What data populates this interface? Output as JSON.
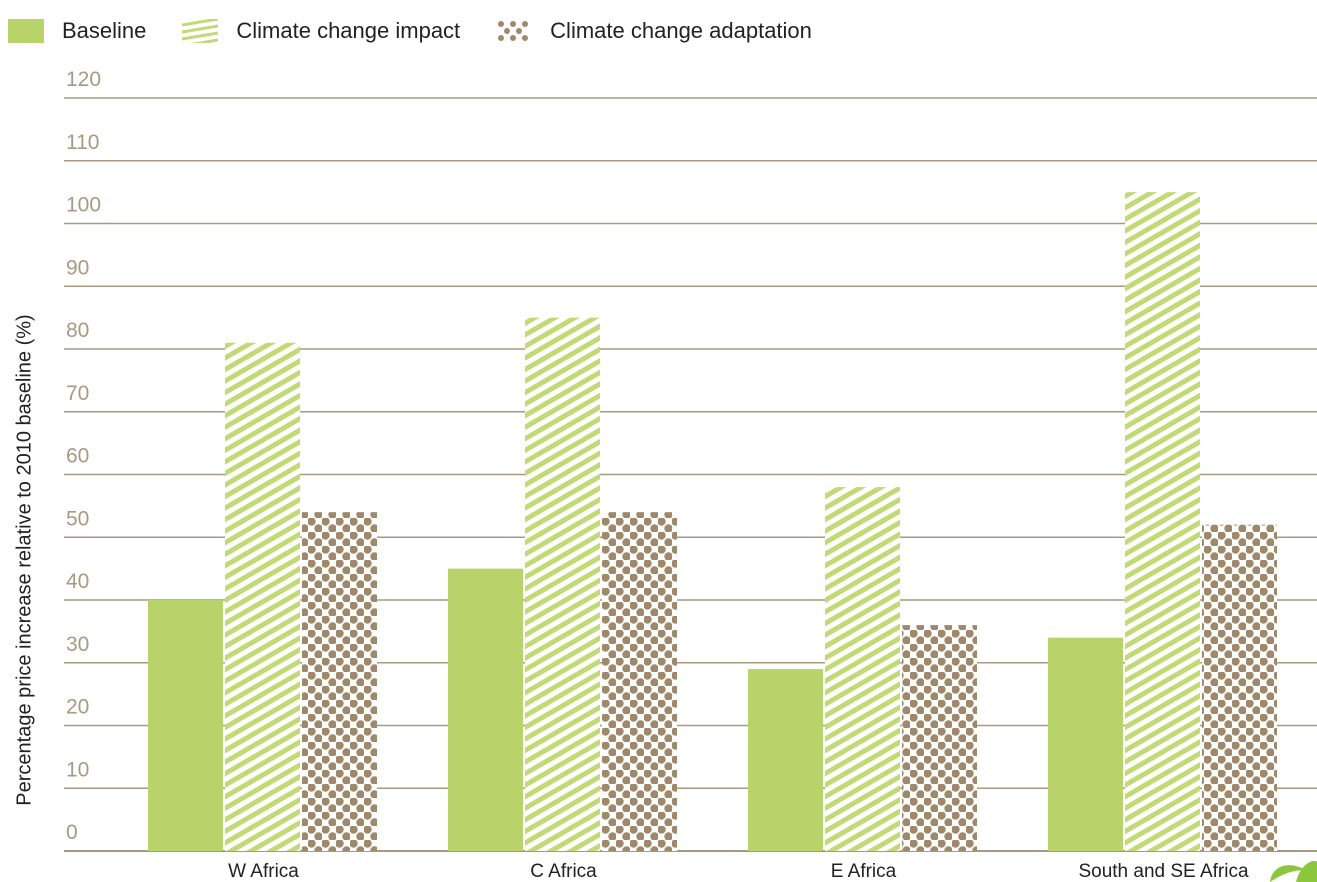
{
  "chart_data": {
    "type": "bar",
    "title": "",
    "xlabel": "",
    "ylabel": "Percentage price increase relative to 2010 baseline (%)",
    "ylim": [
      0,
      120
    ],
    "yticks": [
      0,
      10,
      20,
      30,
      40,
      50,
      60,
      70,
      80,
      90,
      100,
      110,
      120
    ],
    "grid": true,
    "legend_position": "top-left",
    "categories": [
      "W Africa",
      "C Africa",
      "E Africa",
      "South and SE Africa"
    ],
    "series": [
      {
        "name": "Baseline",
        "values": [
          40,
          45,
          29,
          34
        ],
        "color": "#b8d36a",
        "fill": "solid"
      },
      {
        "name": "Climate change impact",
        "values": [
          81,
          85,
          58,
          105
        ],
        "color": "#c2da76",
        "fill": "diagonal-stripes"
      },
      {
        "name": "Climate change adaptation",
        "values": [
          54,
          54,
          36,
          52
        ],
        "color": "#a0896a",
        "fill": "dots"
      }
    ],
    "gridline_color": "#a89a82"
  },
  "decoration": {
    "corner_leaf_icon": "green-leaf-icon"
  }
}
